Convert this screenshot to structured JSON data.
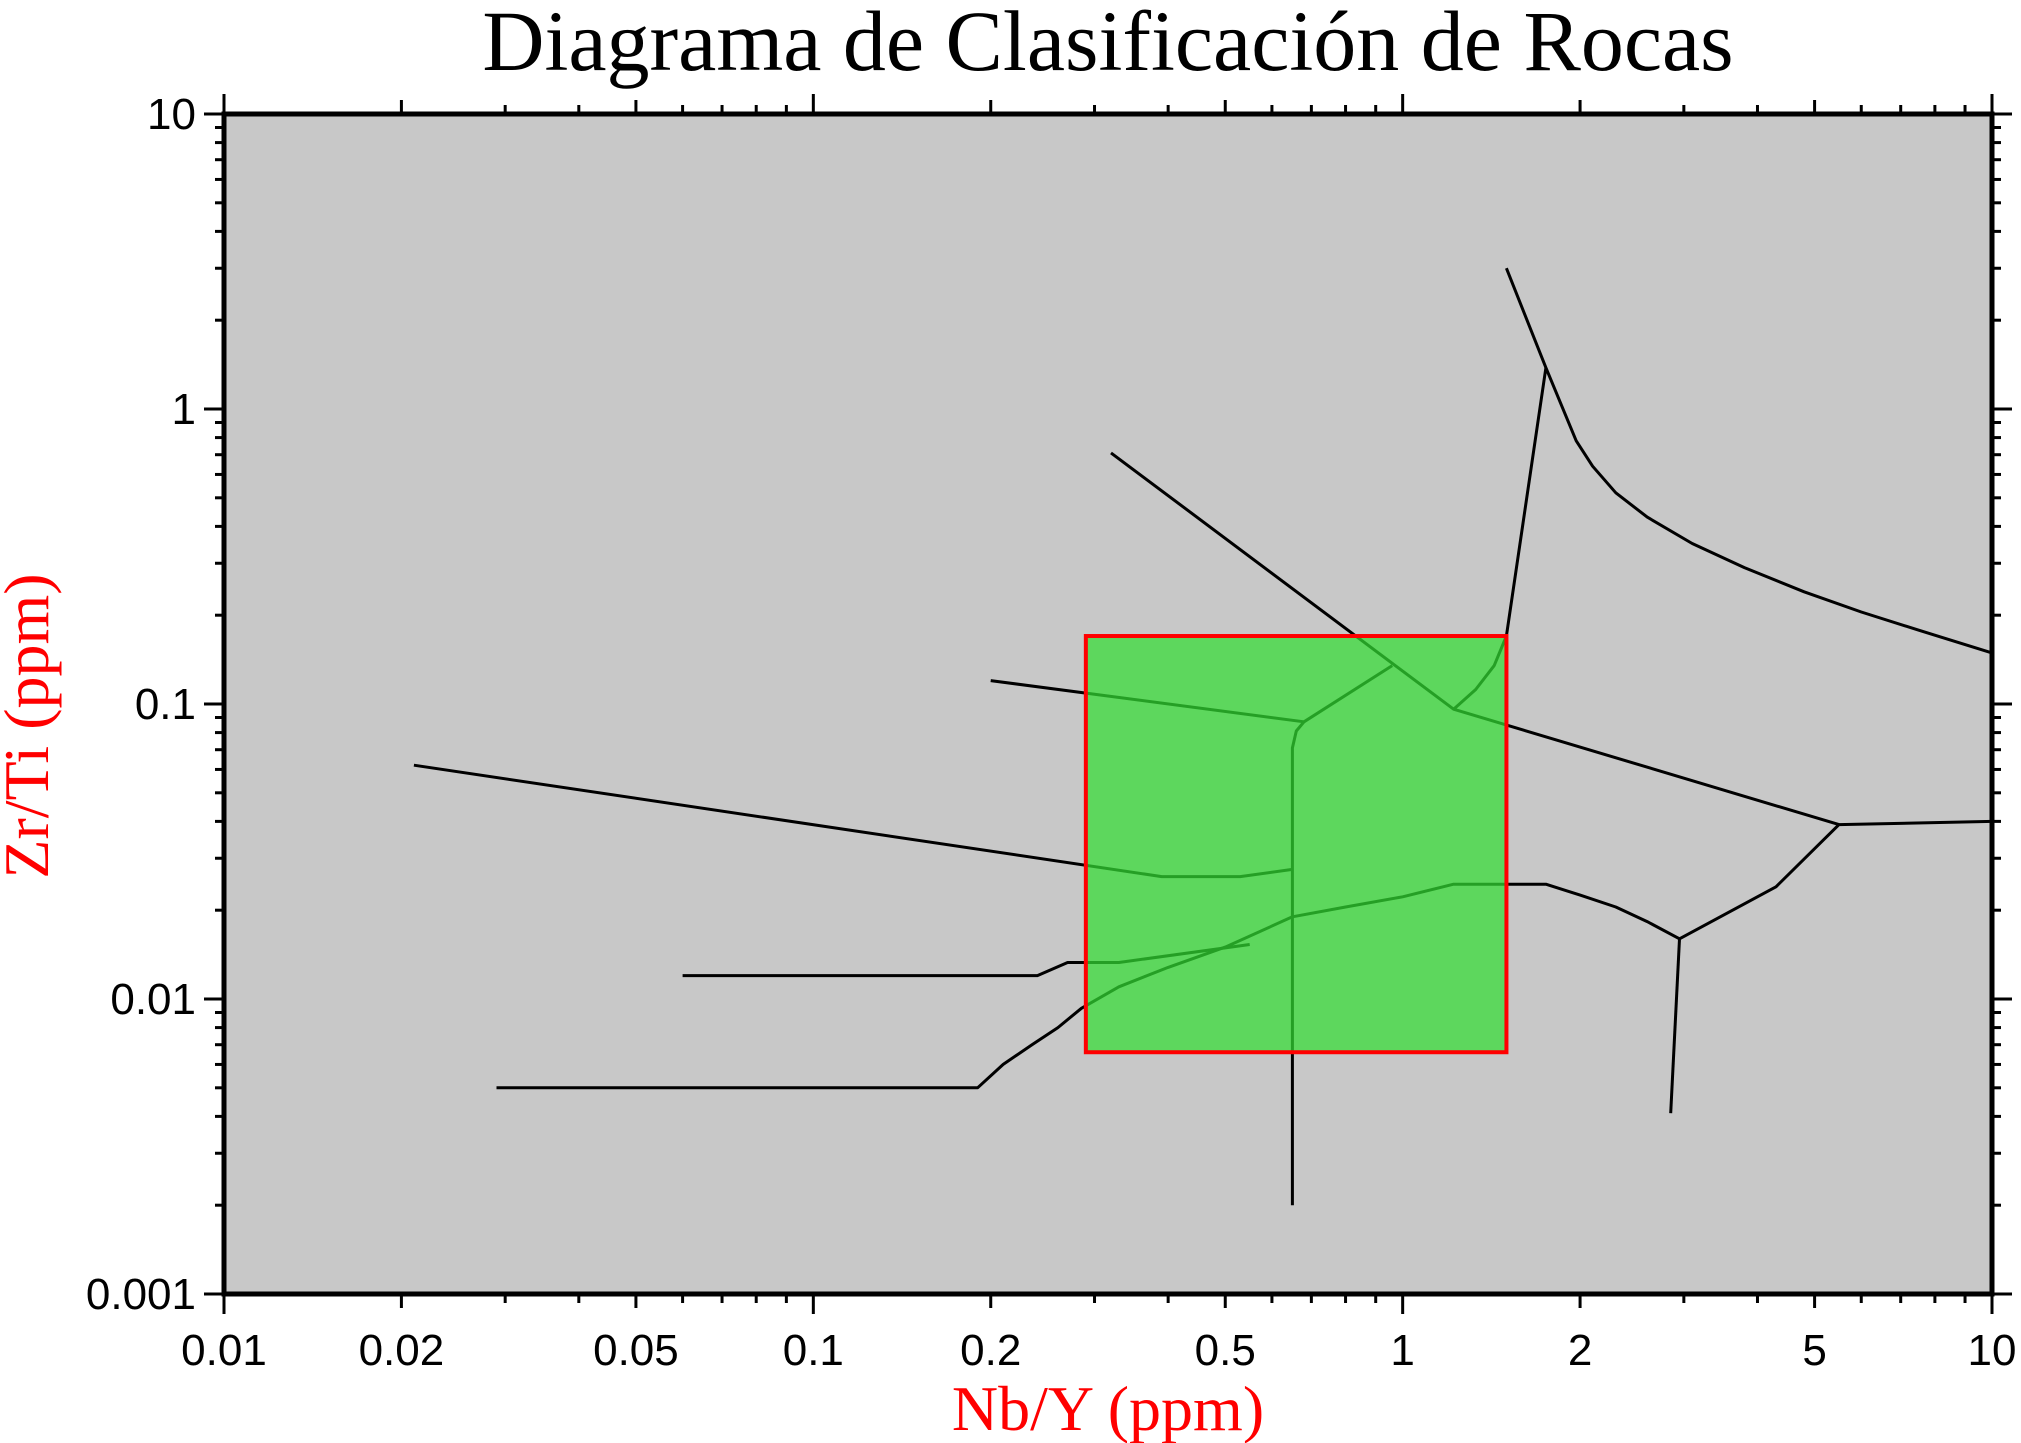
{
  "chart_data": {
    "type": "line",
    "title": "Diagrama de Clasificación de Rocas",
    "xlabel": "Nb/Y (ppm)",
    "ylabel": "Zr/Ti (ppm)",
    "xscale": "log",
    "yscale": "log",
    "xlim": [
      0.01,
      10
    ],
    "ylim": [
      0.001,
      10
    ],
    "x_ticks": [
      {
        "value": 0.01,
        "label": "0.01"
      },
      {
        "value": 0.02,
        "label": "0.02"
      },
      {
        "value": 0.05,
        "label": "0.05"
      },
      {
        "value": 0.1,
        "label": "0.1"
      },
      {
        "value": 0.2,
        "label": "0.2"
      },
      {
        "value": 0.5,
        "label": "0.5"
      },
      {
        "value": 1,
        "label": "1"
      },
      {
        "value": 2,
        "label": "2"
      },
      {
        "value": 5,
        "label": "5"
      },
      {
        "value": 10,
        "label": "10"
      }
    ],
    "y_ticks": [
      {
        "value": 0.001,
        "label": "0.001"
      },
      {
        "value": 0.01,
        "label": "0.01"
      },
      {
        "value": 0.1,
        "label": "0.1"
      },
      {
        "value": 1,
        "label": "1"
      },
      {
        "value": 10,
        "label": "10"
      }
    ],
    "highlight_rect": {
      "x": [
        0.29,
        1.5
      ],
      "y": [
        0.0066,
        0.17
      ]
    },
    "boundary_lines": [
      {
        "points": [
          [
            0.32,
            0.71
          ],
          [
            1.22,
            0.096
          ],
          [
            5.5,
            0.039
          ]
        ]
      },
      {
        "points": [
          [
            1.5,
            3.0
          ],
          [
            1.75,
            1.38
          ],
          [
            1.97,
            0.78
          ],
          [
            2.1,
            0.64
          ],
          [
            2.3,
            0.52
          ],
          [
            2.6,
            0.43
          ],
          [
            3.1,
            0.35
          ],
          [
            3.8,
            0.29
          ],
          [
            4.8,
            0.24
          ],
          [
            6.0,
            0.205
          ],
          [
            7.5,
            0.178
          ],
          [
            10,
            0.149
          ]
        ]
      },
      {
        "points": [
          [
            1.75,
            1.38
          ],
          [
            1.5,
            0.17
          ],
          [
            1.43,
            0.135
          ],
          [
            1.33,
            0.112
          ],
          [
            1.22,
            0.096
          ]
        ]
      },
      {
        "points": [
          [
            0.2,
            0.12
          ],
          [
            0.68,
            0.087
          ],
          [
            0.96,
            0.135
          ]
        ]
      },
      {
        "points": [
          [
            0.68,
            0.087
          ],
          [
            0.66,
            0.081
          ],
          [
            0.65,
            0.071
          ],
          [
            0.65,
            0.002
          ]
        ]
      },
      {
        "points": [
          [
            0.021,
            0.062
          ],
          [
            0.39,
            0.026
          ],
          [
            0.53,
            0.026
          ],
          [
            0.65,
            0.0275
          ]
        ]
      },
      {
        "points": [
          [
            0.06,
            0.012
          ],
          [
            0.24,
            0.012
          ],
          [
            0.27,
            0.0133
          ],
          [
            0.33,
            0.0133
          ],
          [
            0.55,
            0.0153
          ]
        ]
      },
      {
        "points": [
          [
            0.029,
            0.005
          ],
          [
            0.19,
            0.005
          ],
          [
            0.21,
            0.006
          ],
          [
            0.235,
            0.007
          ],
          [
            0.26,
            0.008
          ],
          [
            0.285,
            0.0093
          ],
          [
            0.33,
            0.011
          ],
          [
            0.4,
            0.0128
          ],
          [
            0.5,
            0.015
          ],
          [
            0.65,
            0.019
          ],
          [
            0.8,
            0.0205
          ],
          [
            1.0,
            0.0222
          ],
          [
            1.22,
            0.0245
          ],
          [
            1.75,
            0.0245
          ],
          [
            2.0,
            0.0225
          ],
          [
            2.3,
            0.0205
          ],
          [
            2.6,
            0.0183
          ],
          [
            2.95,
            0.016
          ],
          [
            4.3,
            0.024
          ],
          [
            5.5,
            0.039
          ],
          [
            10,
            0.04
          ]
        ]
      },
      {
        "points": [
          [
            2.95,
            0.016
          ],
          [
            2.85,
            0.0041
          ]
        ]
      }
    ],
    "colors": {
      "plot_background": "#c8c8c8",
      "highlight_fill": "#33dd33",
      "highlight_stroke": "#ff0000",
      "line": "#000000",
      "axis_label": "#ff0000"
    },
    "grid": false,
    "legend": "none"
  }
}
